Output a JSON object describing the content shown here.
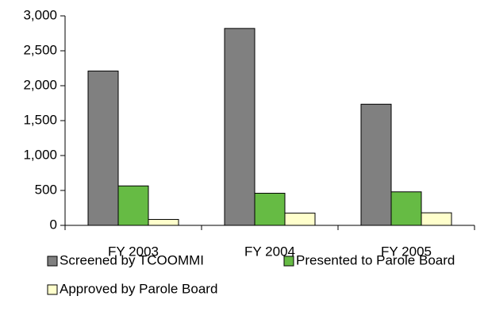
{
  "chart_data": {
    "type": "bar",
    "categories": [
      "FY 2003",
      "FY 2004",
      "FY 2005"
    ],
    "series": [
      {
        "name": "Screened by TCOOMMI",
        "color": "#808080",
        "values": [
          2210,
          2820,
          1735
        ]
      },
      {
        "name": "Presented to Parole Board",
        "color": "#66bb44",
        "values": [
          565,
          460,
          480
        ]
      },
      {
        "name": "Approved by Parole Board",
        "color": "#ffffcc",
        "values": [
          85,
          175,
          180
        ]
      }
    ],
    "ylim": [
      0,
      3000
    ],
    "yticks": [
      0,
      500,
      {
        "value": 1000,
        "label": "1,000"
      },
      {
        "value": 1500,
        "label": "1,500"
      },
      {
        "value": 2000,
        "label": "2,000"
      },
      {
        "value": 2500,
        "label": "2,500"
      },
      {
        "value": 3000,
        "label": "3,000"
      }
    ],
    "grid": false,
    "legend": "bottom"
  }
}
